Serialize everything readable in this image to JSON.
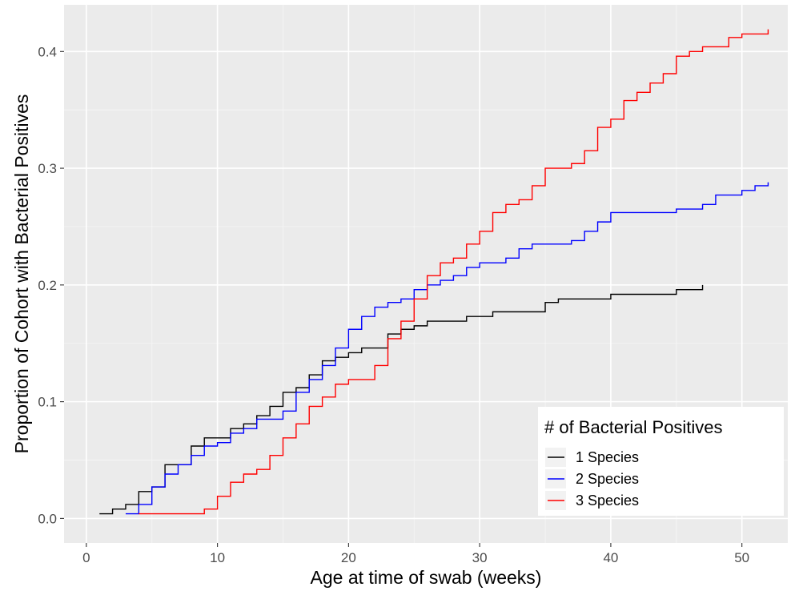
{
  "chart_data": {
    "type": "line",
    "step": true,
    "title": "",
    "xlabel": "Age at time of swab (weeks)",
    "ylabel": "Proportion of Cohort with Bacterial Positives",
    "xlim": [
      -1.7,
      53.5
    ],
    "ylim": [
      -0.021,
      0.44
    ],
    "x_ticks": [
      0,
      10,
      20,
      30,
      40,
      50
    ],
    "y_ticks": [
      0.0,
      0.1,
      0.2,
      0.3,
      0.4
    ],
    "x_tick_labels": [
      "0",
      "10",
      "20",
      "30",
      "40",
      "50"
    ],
    "y_tick_labels": [
      "0.0",
      "0.1",
      "0.2",
      "0.3",
      "0.4"
    ],
    "grid": true,
    "background": "#ebebeb",
    "legend": {
      "title": "# of Bacterial Positives",
      "position": "bottom-right",
      "entries": [
        "1 Species",
        "2 Species",
        "3 Species"
      ]
    },
    "series": [
      {
        "name": "1 Species",
        "color": "#000000",
        "x": [
          1,
          2,
          3,
          4,
          5,
          6,
          7,
          8,
          9,
          10,
          11,
          12,
          13,
          14,
          15,
          16,
          17,
          18,
          19,
          20,
          21,
          22,
          23,
          24,
          25,
          26,
          27,
          28,
          29,
          30,
          31,
          32,
          33,
          34,
          35,
          36,
          37,
          38,
          39,
          40,
          41,
          42,
          43,
          44,
          45,
          46,
          47
        ],
        "y": [
          0.004,
          0.008,
          0.012,
          0.023,
          0.027,
          0.046,
          0.046,
          0.062,
          0.069,
          0.069,
          0.077,
          0.081,
          0.088,
          0.096,
          0.108,
          0.112,
          0.123,
          0.135,
          0.138,
          0.142,
          0.146,
          0.146,
          0.158,
          0.162,
          0.165,
          0.169,
          0.169,
          0.169,
          0.173,
          0.173,
          0.177,
          0.177,
          0.177,
          0.177,
          0.185,
          0.188,
          0.188,
          0.188,
          0.188,
          0.192,
          0.192,
          0.192,
          0.192,
          0.192,
          0.196,
          0.196,
          0.2
        ]
      },
      {
        "name": "2 Species",
        "color": "#0000ff",
        "x": [
          3,
          4,
          5,
          6,
          7,
          8,
          9,
          10,
          11,
          12,
          13,
          14,
          15,
          16,
          17,
          18,
          19,
          20,
          21,
          22,
          23,
          24,
          25,
          26,
          27,
          28,
          29,
          30,
          31,
          32,
          33,
          34,
          35,
          36,
          37,
          38,
          39,
          40,
          41,
          42,
          43,
          44,
          45,
          46,
          47,
          48,
          49,
          50,
          51,
          52
        ],
        "y": [
          0.004,
          0.012,
          0.027,
          0.038,
          0.046,
          0.054,
          0.062,
          0.065,
          0.073,
          0.077,
          0.085,
          0.085,
          0.092,
          0.108,
          0.119,
          0.131,
          0.146,
          0.162,
          0.173,
          0.181,
          0.185,
          0.188,
          0.196,
          0.2,
          0.204,
          0.208,
          0.215,
          0.219,
          0.219,
          0.223,
          0.231,
          0.235,
          0.235,
          0.235,
          0.238,
          0.246,
          0.254,
          0.262,
          0.262,
          0.262,
          0.262,
          0.262,
          0.265,
          0.265,
          0.269,
          0.277,
          0.277,
          0.281,
          0.285,
          0.288
        ]
      },
      {
        "name": "3 Species",
        "color": "#ff0000",
        "x": [
          4,
          9,
          10,
          11,
          12,
          13,
          14,
          15,
          16,
          17,
          18,
          19,
          20,
          21,
          22,
          23,
          24,
          25,
          26,
          27,
          28,
          29,
          30,
          31,
          32,
          33,
          34,
          35,
          36,
          37,
          38,
          39,
          40,
          41,
          42,
          43,
          44,
          45,
          46,
          47,
          48,
          49,
          50,
          51,
          52
        ],
        "y": [
          0.004,
          0.008,
          0.019,
          0.031,
          0.038,
          0.042,
          0.054,
          0.069,
          0.081,
          0.096,
          0.104,
          0.115,
          0.119,
          0.119,
          0.131,
          0.154,
          0.169,
          0.188,
          0.208,
          0.219,
          0.223,
          0.235,
          0.246,
          0.262,
          0.269,
          0.273,
          0.285,
          0.3,
          0.3,
          0.304,
          0.315,
          0.335,
          0.342,
          0.358,
          0.365,
          0.373,
          0.381,
          0.396,
          0.4,
          0.404,
          0.404,
          0.412,
          0.415,
          0.415,
          0.419
        ]
      }
    ]
  }
}
